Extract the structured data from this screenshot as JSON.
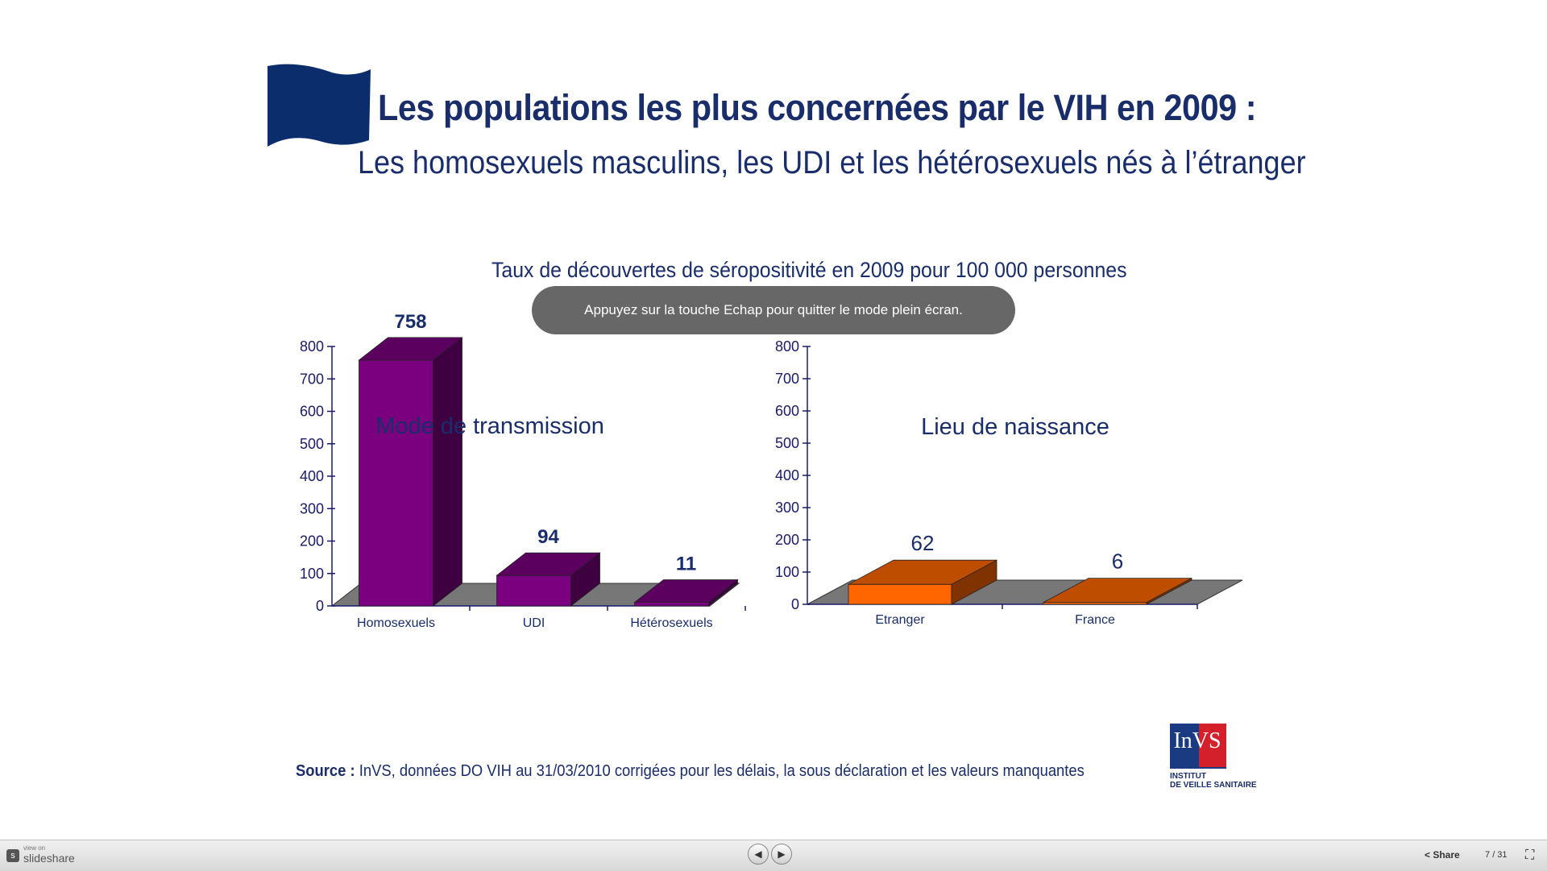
{
  "slide": {
    "title": "Les populations les plus concernées par le VIH en 2009 :",
    "subtitle": "Les homosexuels masculins, les UDI et les hétérosexuels nés à l’étranger",
    "chart_title": "Taux de découvertes de séropositivité en 2009 pour 100 000 personnes",
    "source_label": "Source :",
    "source_text": " InVS, données DO VIH au 31/03/2010 corrigées pour les délais, la sous déclaration et les valeurs manquantes"
  },
  "notification": {
    "text": "Appuyez sur la touche Echap pour quitter le mode plein écran."
  },
  "logo": {
    "text": "InVS",
    "caption_line1": "INSTITUT",
    "caption_line2": "DE VEILLE SANITAIRE"
  },
  "chart_data": [
    {
      "type": "bar",
      "title": "Mode de transmission",
      "categories": [
        "Homosexuels",
        "UDI",
        "Hétérosexuels"
      ],
      "values": [
        758,
        94,
        11
      ],
      "ylim": [
        0,
        800
      ],
      "yticks": [
        0,
        100,
        200,
        300,
        400,
        500,
        600,
        700,
        800
      ],
      "color": "#7b0080",
      "grid": false
    },
    {
      "type": "bar",
      "title": "Lieu de naissance",
      "categories": [
        "Etranger",
        "France"
      ],
      "values": [
        62,
        6
      ],
      "ylim": [
        0,
        800
      ],
      "yticks": [
        0,
        100,
        200,
        300,
        400,
        500,
        600,
        700,
        800
      ],
      "color": "#ff6600",
      "grid": false
    }
  ],
  "toolbar": {
    "view_on": "view on",
    "brand": "slideshare",
    "share_label": "Share",
    "page_current": "7",
    "page_total": "/ 31",
    "prev_icon": "◀",
    "next_icon": "▶",
    "fullscreen_icon": "⛶"
  }
}
